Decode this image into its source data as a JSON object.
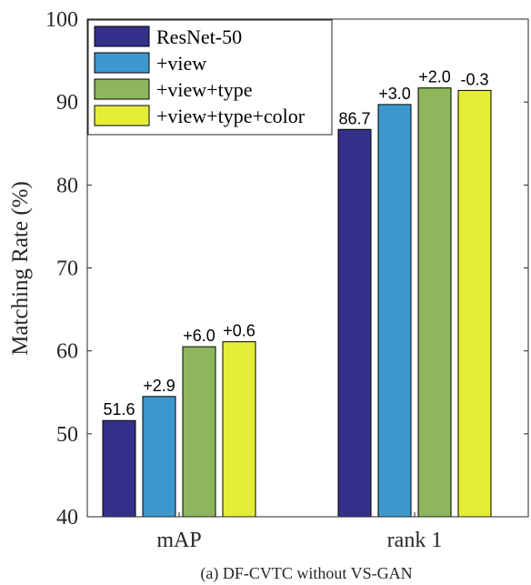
{
  "chart_data": {
    "type": "bar",
    "categories": [
      "mAP",
      "rank 1"
    ],
    "series": [
      {
        "name": "ResNet-50",
        "color": "#35318a",
        "values": [
          51.6,
          86.7
        ],
        "labels": [
          "51.6",
          "86.7"
        ]
      },
      {
        "name": "+view",
        "color": "#3d98cf",
        "values": [
          54.5,
          89.7
        ],
        "labels": [
          "+2.9",
          "+3.0"
        ]
      },
      {
        "name": "+view+type",
        "color": "#8eb65c",
        "values": [
          60.5,
          91.7
        ],
        "labels": [
          "+6.0",
          "+2.0"
        ]
      },
      {
        "name": "+view+type+color",
        "color": "#e4ee36",
        "values": [
          61.1,
          91.4
        ],
        "labels": [
          "+0.6",
          "-0.3"
        ]
      }
    ],
    "ylabel": "Matching Rate (%)",
    "xlabel": "",
    "ylim": [
      40,
      100
    ],
    "yticks": [
      40,
      50,
      60,
      70,
      80,
      90,
      100
    ],
    "grid": false,
    "legend": "top-left",
    "caption": "(a) DF-CVTC without VS-GAN"
  }
}
